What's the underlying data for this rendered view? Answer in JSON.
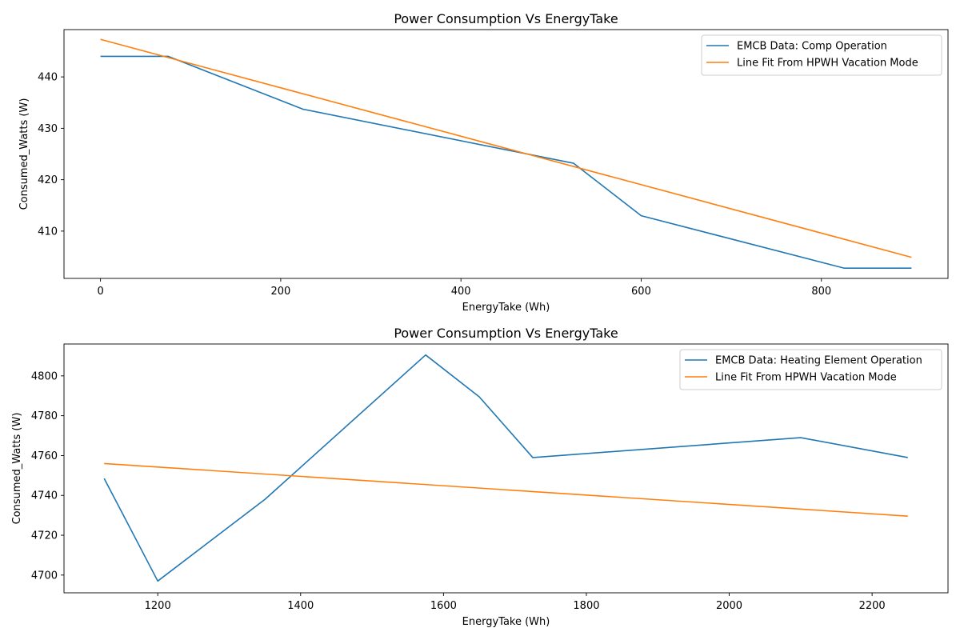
{
  "chart_data": [
    {
      "type": "line",
      "title": "Power Consumption Vs EnergyTake",
      "xlabel": "EnergyTake (Wh)",
      "ylabel": "Consumed_Watts (W)",
      "xlim": [
        -40.5,
        940.5
      ],
      "ylim": [
        400.8,
        449.2
      ],
      "xticks": [
        0,
        200,
        400,
        600,
        800
      ],
      "yticks": [
        410,
        420,
        430,
        440
      ],
      "grid": false,
      "legend_position": "top-right",
      "series": [
        {
          "name": "EMCB Data: Comp Operation",
          "color": "#1f77b4",
          "x": [
            0,
            75,
            225,
            525,
            600,
            825,
            900
          ],
          "y": [
            444.0,
            444.0,
            433.7,
            423.2,
            413.0,
            402.8,
            402.8
          ]
        },
        {
          "name": "Line Fit From HPWH Vacation Mode",
          "color": "#ff7f0e",
          "x": [
            0,
            900
          ],
          "y": [
            447.3,
            404.9
          ]
        }
      ]
    },
    {
      "type": "line",
      "title": "Power Consumption Vs EnergyTake",
      "xlabel": "EnergyTake (Wh)",
      "ylabel": "Consumed_Watts (W)",
      "xlim": [
        1068.75,
        2306.25
      ],
      "ylim": [
        4691.1,
        4816.0
      ],
      "xticks": [
        1200,
        1400,
        1600,
        1800,
        2000,
        2200
      ],
      "yticks": [
        4700,
        4720,
        4740,
        4760,
        4780,
        4800
      ],
      "grid": false,
      "legend_position": "top-right",
      "series": [
        {
          "name": "EMCB Data: Heating Element Operation",
          "color": "#1f77b4",
          "x": [
            1125,
            1200,
            1350,
            1575,
            1650,
            1725,
            2100,
            2250
          ],
          "y": [
            4748.5,
            4697.0,
            4738.0,
            4810.5,
            4789.5,
            4759.0,
            4769.0,
            4759.0
          ]
        },
        {
          "name": "Line Fit From HPWH Vacation Mode",
          "color": "#ff7f0e",
          "x": [
            1125,
            2250
          ],
          "y": [
            4756.0,
            4729.6
          ]
        }
      ]
    }
  ]
}
